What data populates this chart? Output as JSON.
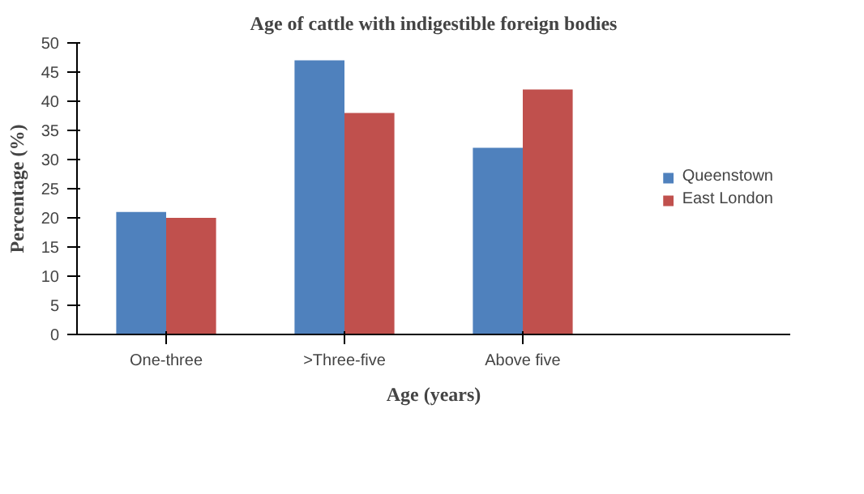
{
  "chart_data": {
    "type": "bar",
    "title": "Age of cattle with indigestible foreign bodies",
    "xlabel": "Age (years)",
    "ylabel": "Percentage (%)",
    "categories": [
      "One-three",
      ">Three-five",
      "Above five"
    ],
    "series": [
      {
        "name": "Queenstown",
        "color": "#4f81bd",
        "values": [
          21,
          47,
          32
        ]
      },
      {
        "name": "East London",
        "color": "#c0504d",
        "values": [
          20,
          38,
          42
        ]
      }
    ],
    "ylim": [
      0,
      50
    ],
    "yticks": [
      0,
      5,
      10,
      15,
      20,
      25,
      30,
      35,
      40,
      45,
      50
    ],
    "grid": false,
    "legend": "right"
  }
}
